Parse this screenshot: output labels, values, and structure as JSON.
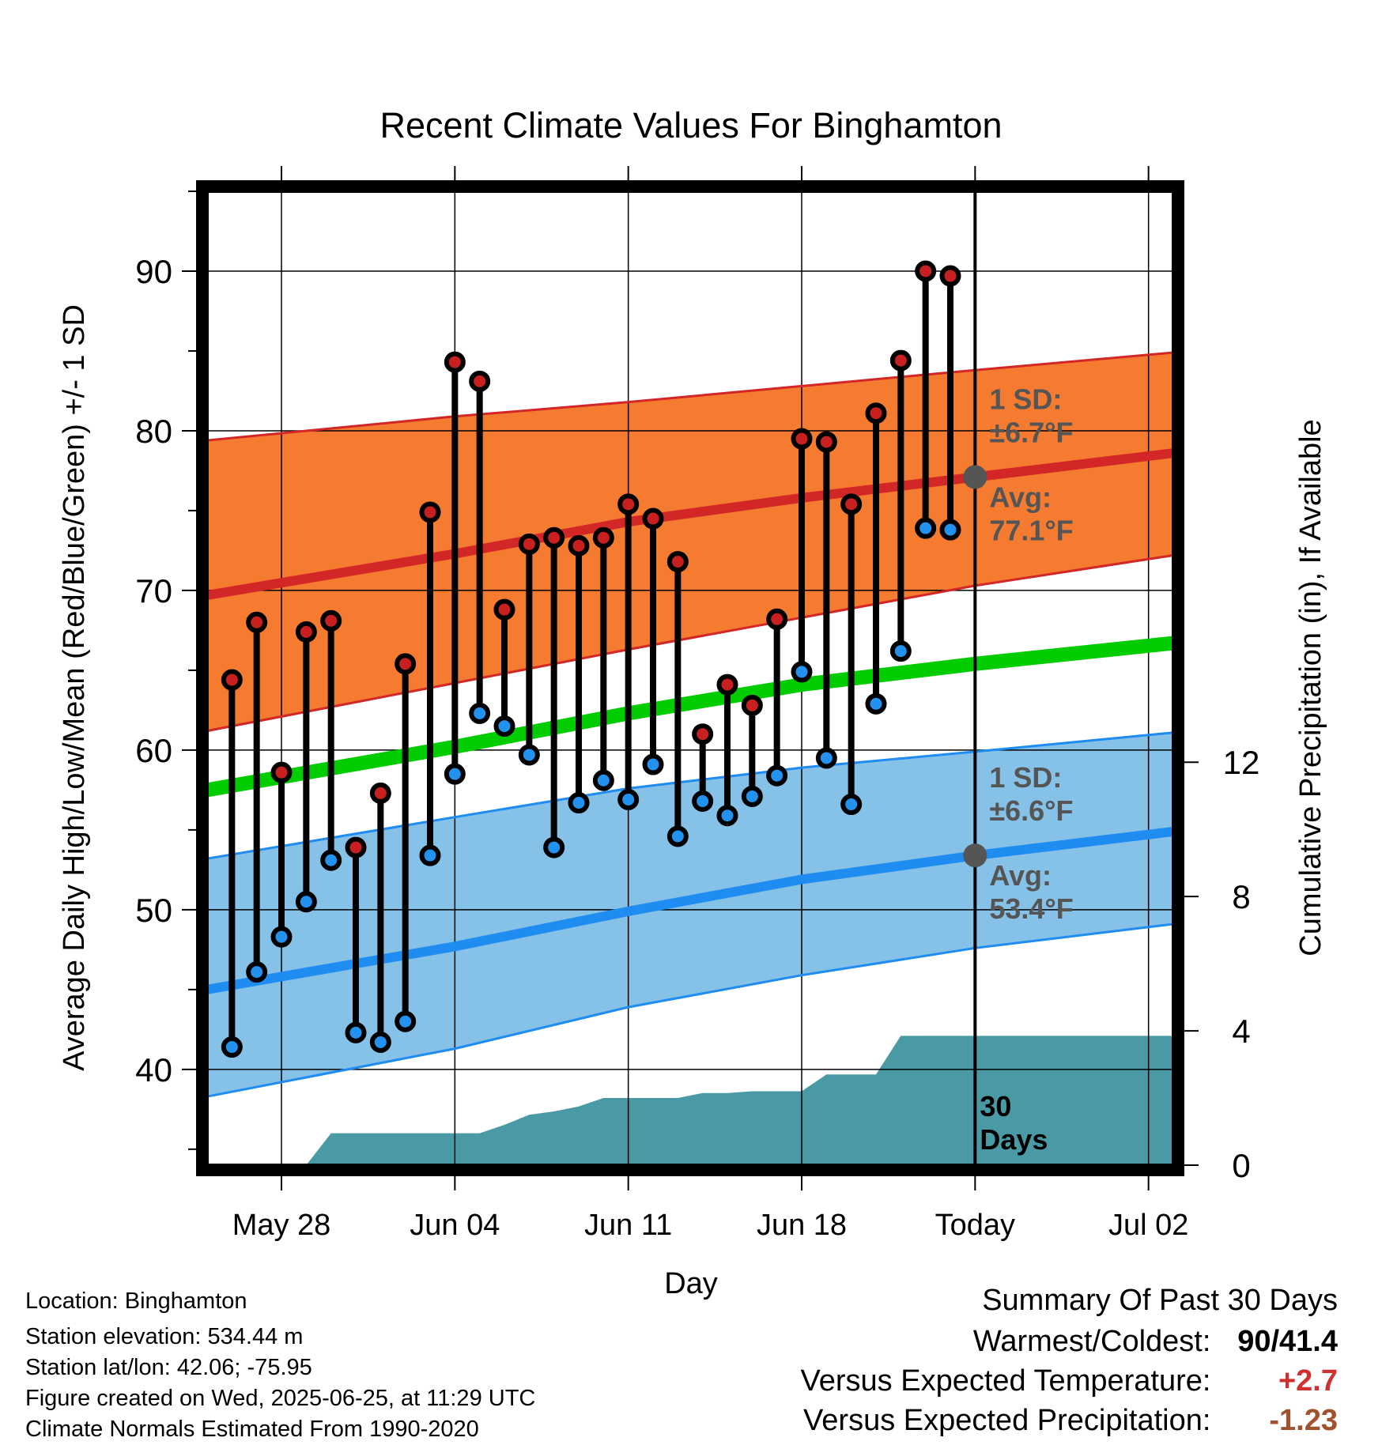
{
  "chart_data": {
    "type": "line",
    "title": "Recent Climate Values For Binghamton",
    "xlabel": "Day",
    "ylabel_left": "Average Daily High/Low/Mean (Red/Blue/Green) +/- 1 SD",
    "ylabel_right": "Cumulative Precipitation (in), If Available",
    "ylim_left": [
      34,
      95
    ],
    "ylim_right": [
      0,
      29
    ],
    "x_day_range": [
      -3,
      36
    ],
    "x_ticks": [
      {
        "day": 0,
        "label": "May 28"
      },
      {
        "day": 7,
        "label": "Jun 04"
      },
      {
        "day": 14,
        "label": "Jun 11"
      },
      {
        "day": 21,
        "label": "Jun 18"
      },
      {
        "day": 28,
        "label": "Today"
      },
      {
        "day": 35,
        "label": "Jul 02"
      }
    ],
    "y_ticks_left": [
      40,
      50,
      60,
      70,
      80,
      90
    ],
    "y_ticks_right": [
      0,
      4,
      8,
      12
    ],
    "today_day": 28,
    "window_label": "30 Days",
    "observed": {
      "days": [
        -2,
        -1,
        0,
        1,
        2,
        3,
        4,
        5,
        6,
        7,
        8,
        9,
        10,
        11,
        12,
        13,
        14,
        15,
        16,
        17,
        18,
        19,
        20,
        21,
        22,
        23,
        24,
        25,
        26,
        27
      ],
      "highs": [
        64.4,
        68,
        58.6,
        67.4,
        68.1,
        53.9,
        57.3,
        65.4,
        74.9,
        84.3,
        83.1,
        68.8,
        72.9,
        73.3,
        72.8,
        73.3,
        75.4,
        74.5,
        71.8,
        61.0,
        64.1,
        62.8,
        68.2,
        79.5,
        79.3,
        75.4,
        81.1,
        84.4,
        90,
        89.7
      ],
      "lows": [
        41.4,
        46.1,
        48.3,
        50.5,
        53.1,
        42.3,
        41.7,
        43,
        53.4,
        58.5,
        62.3,
        61.5,
        59.7,
        53.9,
        56.7,
        58.1,
        56.9,
        59.1,
        54.6,
        56.8,
        55.9,
        57.1,
        58.4,
        64.9,
        59.5,
        56.6,
        62.9,
        66.2,
        73.9,
        73.8
      ]
    },
    "normals": {
      "days": [
        -3,
        7,
        14,
        21,
        28,
        36
      ],
      "high_avg": [
        69.7,
        72.3,
        74.3,
        75.8,
        77.1,
        78.6
      ],
      "high_upper": [
        79.4,
        80.9,
        81.8,
        82.8,
        83.8,
        84.9
      ],
      "high_lower": [
        61.2,
        64.2,
        66.3,
        68.3,
        70.3,
        72.2
      ],
      "mean": [
        57.5,
        60.2,
        62.3,
        64.1,
        65.4,
        66.7
      ],
      "low_avg": [
        45.0,
        47.7,
        49.9,
        51.9,
        53.4,
        54.9
      ],
      "low_upper": [
        53.2,
        55.8,
        57.6,
        58.9,
        59.9,
        61.1
      ],
      "low_lower": [
        38.3,
        41.3,
        43.9,
        45.9,
        47.6,
        49.1
      ]
    },
    "precip": {
      "days": [
        -3,
        1,
        2,
        3,
        4,
        5,
        6,
        7,
        8,
        9,
        10,
        11,
        12,
        13,
        14,
        15,
        16,
        17,
        18,
        19,
        20,
        21,
        22,
        23,
        24,
        25,
        26,
        36
      ],
      "cumulative": [
        0,
        0,
        0.95,
        0.95,
        0.95,
        0.95,
        0.95,
        0.95,
        0.95,
        1.2,
        1.5,
        1.6,
        1.75,
        2.0,
        2.0,
        2.0,
        2.0,
        2.15,
        2.15,
        2.2,
        2.2,
        2.2,
        2.7,
        2.7,
        2.7,
        3.85,
        3.85,
        3.85
      ]
    },
    "annotations": {
      "high_sd_label": "1 SD:",
      "high_sd_value": "±6.7°F",
      "high_avg_label": "Avg:",
      "high_avg_value": "77.1°F",
      "low_sd_label": "1 SD:",
      "low_sd_value": "±6.6°F",
      "low_avg_label": "Avg:",
      "low_avg_value": "53.4°F"
    },
    "colors": {
      "high_band": "#f47b30",
      "high_line": "#d32626",
      "low_band": "#86c1e8",
      "low_line": "#1e8cf0",
      "mean_line": "#00cc00",
      "precip": "#4a9aa5",
      "high_dot": "#c82020",
      "low_dot": "#2292ee",
      "annotation": "#555555"
    }
  },
  "info": {
    "location": "Location: Binghamton",
    "elevation": "Station elevation: 534.44 m",
    "latlon": "Station lat/lon: 42.06; -75.95",
    "created": "Figure created on Wed, 2025-06-25, at 11:29 UTC",
    "normals": "Climate Normals Estimated From 1990-2020"
  },
  "summary": {
    "title": "Summary Of Past 30 Days",
    "warm_cold_label": "Warmest/Coldest:",
    "warm_cold_value": "90/41.4",
    "temp_label": "Versus Expected Temperature:",
    "temp_value": "+2.7",
    "temp_color": "#d03030",
    "precip_label": "Versus Expected Precipitation:",
    "precip_value": "-1.23",
    "precip_color": "#a0522d"
  }
}
